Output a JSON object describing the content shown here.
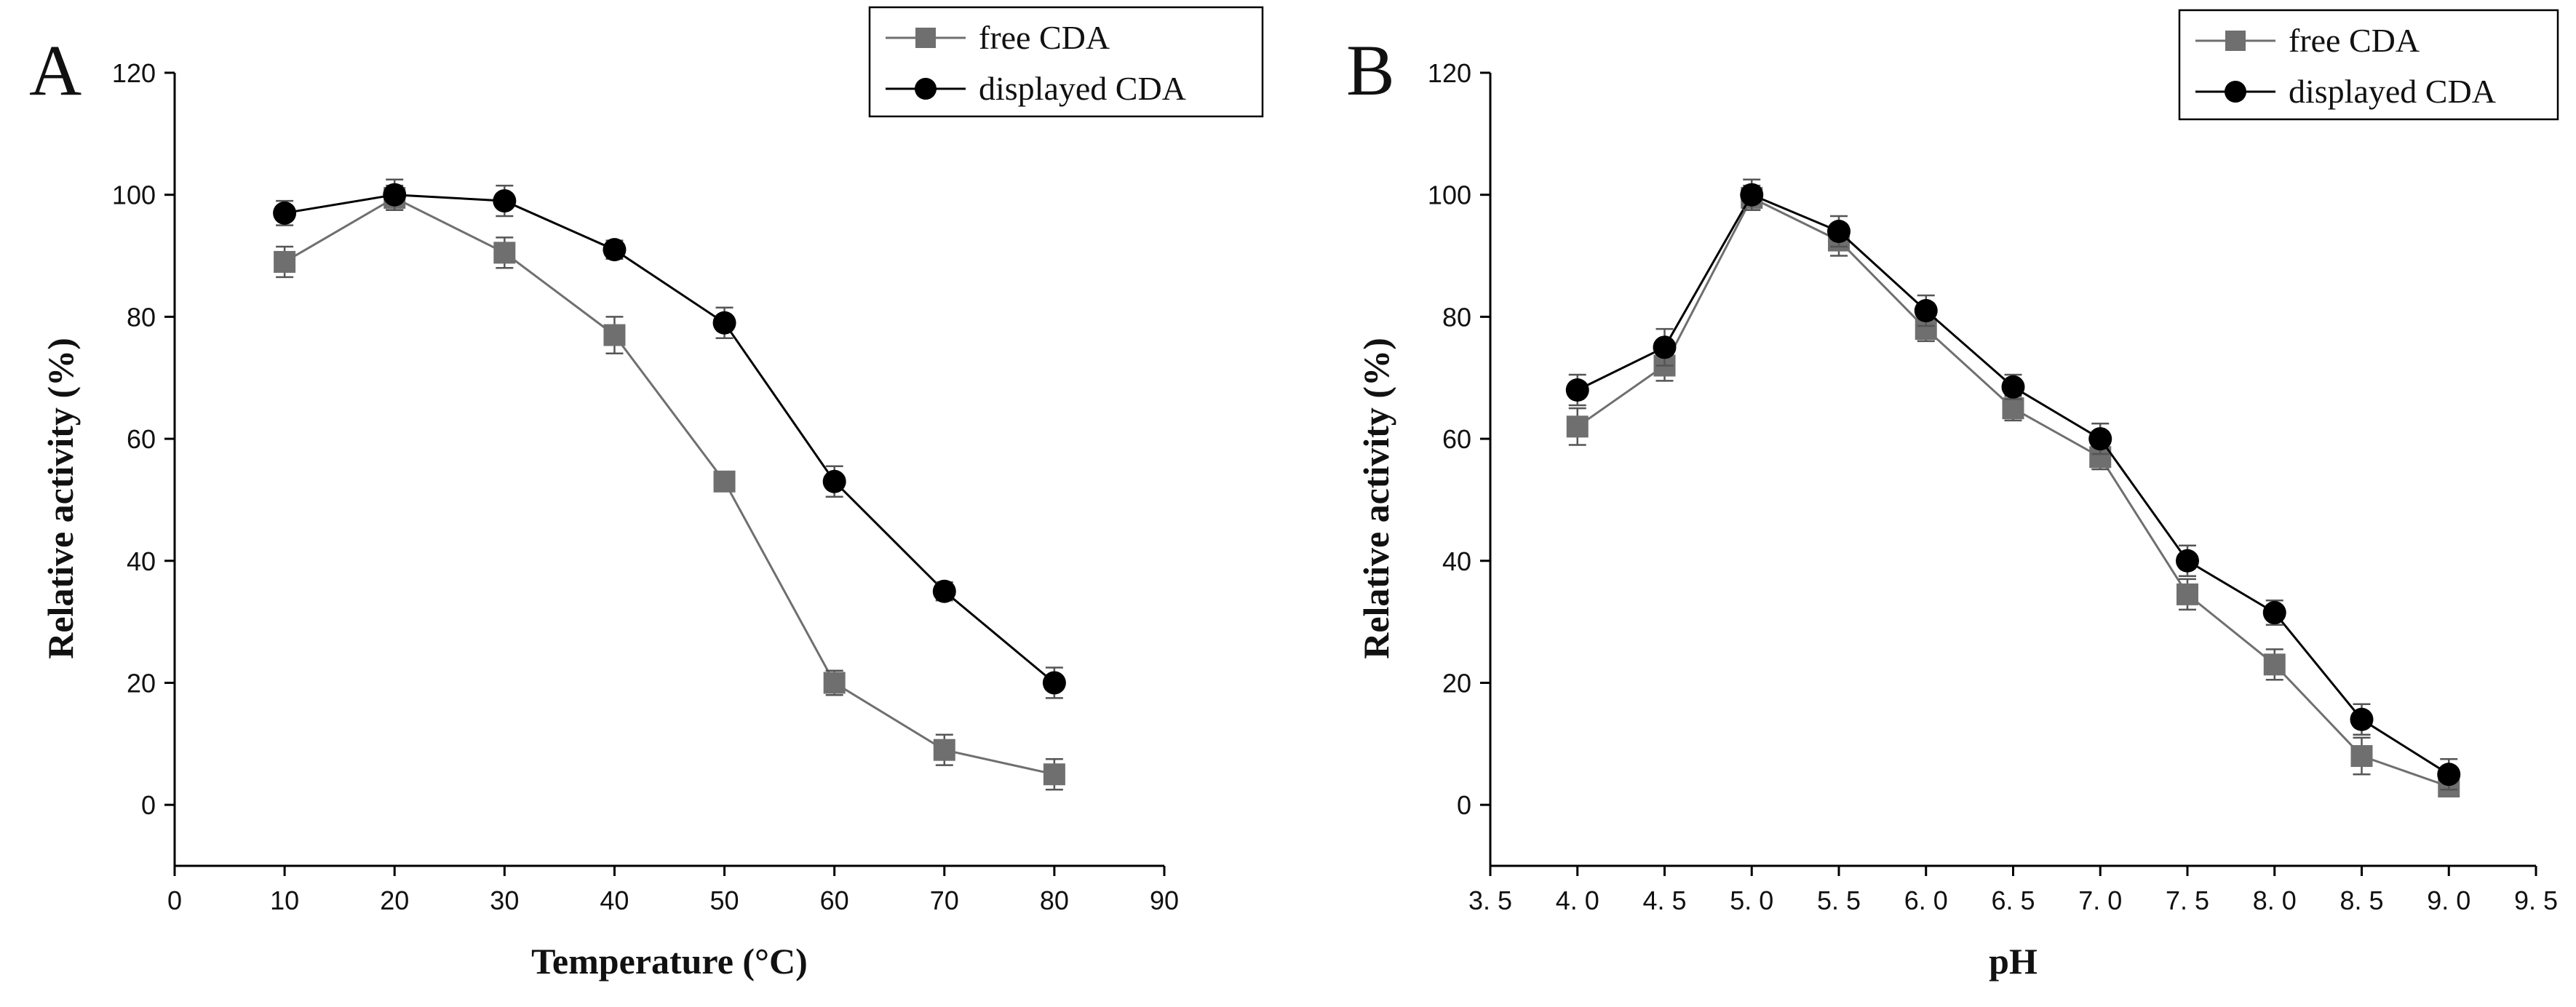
{
  "colors": {
    "free": "#6f6f6f",
    "displayed": "#000000",
    "axis": "#000000"
  },
  "chart_data": [
    {
      "panel": "A",
      "type": "line",
      "xlabel": "Temperature (°C)",
      "ylabel": "Relative activity (%)",
      "xlim": [
        0,
        90
      ],
      "ylim": [
        -10,
        120
      ],
      "x_ticks": [
        0,
        10,
        20,
        30,
        40,
        50,
        60,
        70,
        80,
        90
      ],
      "x_tick_labels": [
        "0",
        "10",
        "20",
        "30",
        "40",
        "50",
        "60",
        "70",
        "80",
        "90"
      ],
      "y_ticks": [
        0,
        20,
        40,
        60,
        80,
        100,
        120
      ],
      "y_tick_labels": [
        "0",
        "20",
        "40",
        "60",
        "80",
        "100",
        "120"
      ],
      "grid": false,
      "legend_position": "top-right",
      "series": [
        {
          "name": "free CDA",
          "marker": "square",
          "colorKey": "free",
          "x": [
            10,
            20,
            30,
            40,
            50,
            60,
            70,
            80
          ],
          "values": [
            89,
            99.5,
            90.5,
            77,
            53,
            20,
            9,
            5
          ],
          "error": [
            2.5,
            2,
            2.5,
            3,
            1.5,
            2,
            2.5,
            2.5
          ]
        },
        {
          "name": "displayed CDA",
          "marker": "circle",
          "colorKey": "displayed",
          "x": [
            10,
            20,
            30,
            40,
            50,
            60,
            70,
            80
          ],
          "values": [
            97,
            100,
            99,
            91,
            79,
            53,
            35,
            20
          ],
          "error": [
            2,
            2.5,
            2.5,
            1.5,
            2.5,
            2.5,
            1.5,
            2.5
          ]
        }
      ]
    },
    {
      "panel": "B",
      "type": "line",
      "xlabel": "pH",
      "ylabel": "Relative activity (%)",
      "xlim": [
        3.5,
        9.5
      ],
      "ylim": [
        -10,
        120
      ],
      "x_ticks": [
        3.5,
        4.0,
        4.5,
        5.0,
        5.5,
        6.0,
        6.5,
        7.0,
        7.5,
        8.0,
        8.5,
        9.0,
        9.5
      ],
      "x_tick_labels": [
        "3. 5",
        "4. 0",
        "4. 5",
        "5. 0",
        "5. 5",
        "6. 0",
        "6. 5",
        "7. 0",
        "7. 5",
        "8. 0",
        "8. 5",
        "9. 0",
        "9. 5"
      ],
      "y_ticks": [
        0,
        20,
        40,
        60,
        80,
        100,
        120
      ],
      "y_tick_labels": [
        "0",
        "20",
        "40",
        "60",
        "80",
        "100",
        "120"
      ],
      "grid": false,
      "legend_position": "top-right",
      "series": [
        {
          "name": "free CDA",
          "marker": "square",
          "colorKey": "free",
          "x": [
            4.0,
            4.5,
            5.0,
            5.5,
            6.0,
            6.5,
            7.0,
            7.5,
            8.0,
            8.5,
            9.0
          ],
          "values": [
            62,
            72,
            99.5,
            92.5,
            78,
            65,
            57,
            34.5,
            23,
            8,
            3
          ],
          "error": [
            3,
            2.5,
            2,
            2.5,
            2,
            2,
            2,
            2.5,
            2.5,
            3,
            1.5
          ]
        },
        {
          "name": "displayed CDA",
          "marker": "circle",
          "colorKey": "displayed",
          "x": [
            4.0,
            4.5,
            5.0,
            5.5,
            6.0,
            6.5,
            7.0,
            7.5,
            8.0,
            8.5,
            9.0
          ],
          "values": [
            68,
            75,
            100,
            94,
            81,
            68.5,
            60,
            40,
            31.5,
            14,
            5
          ],
          "error": [
            2.5,
            3,
            2.5,
            2.5,
            2.5,
            2,
            2.5,
            2.5,
            2,
            2.5,
            2.5
          ]
        }
      ]
    }
  ]
}
